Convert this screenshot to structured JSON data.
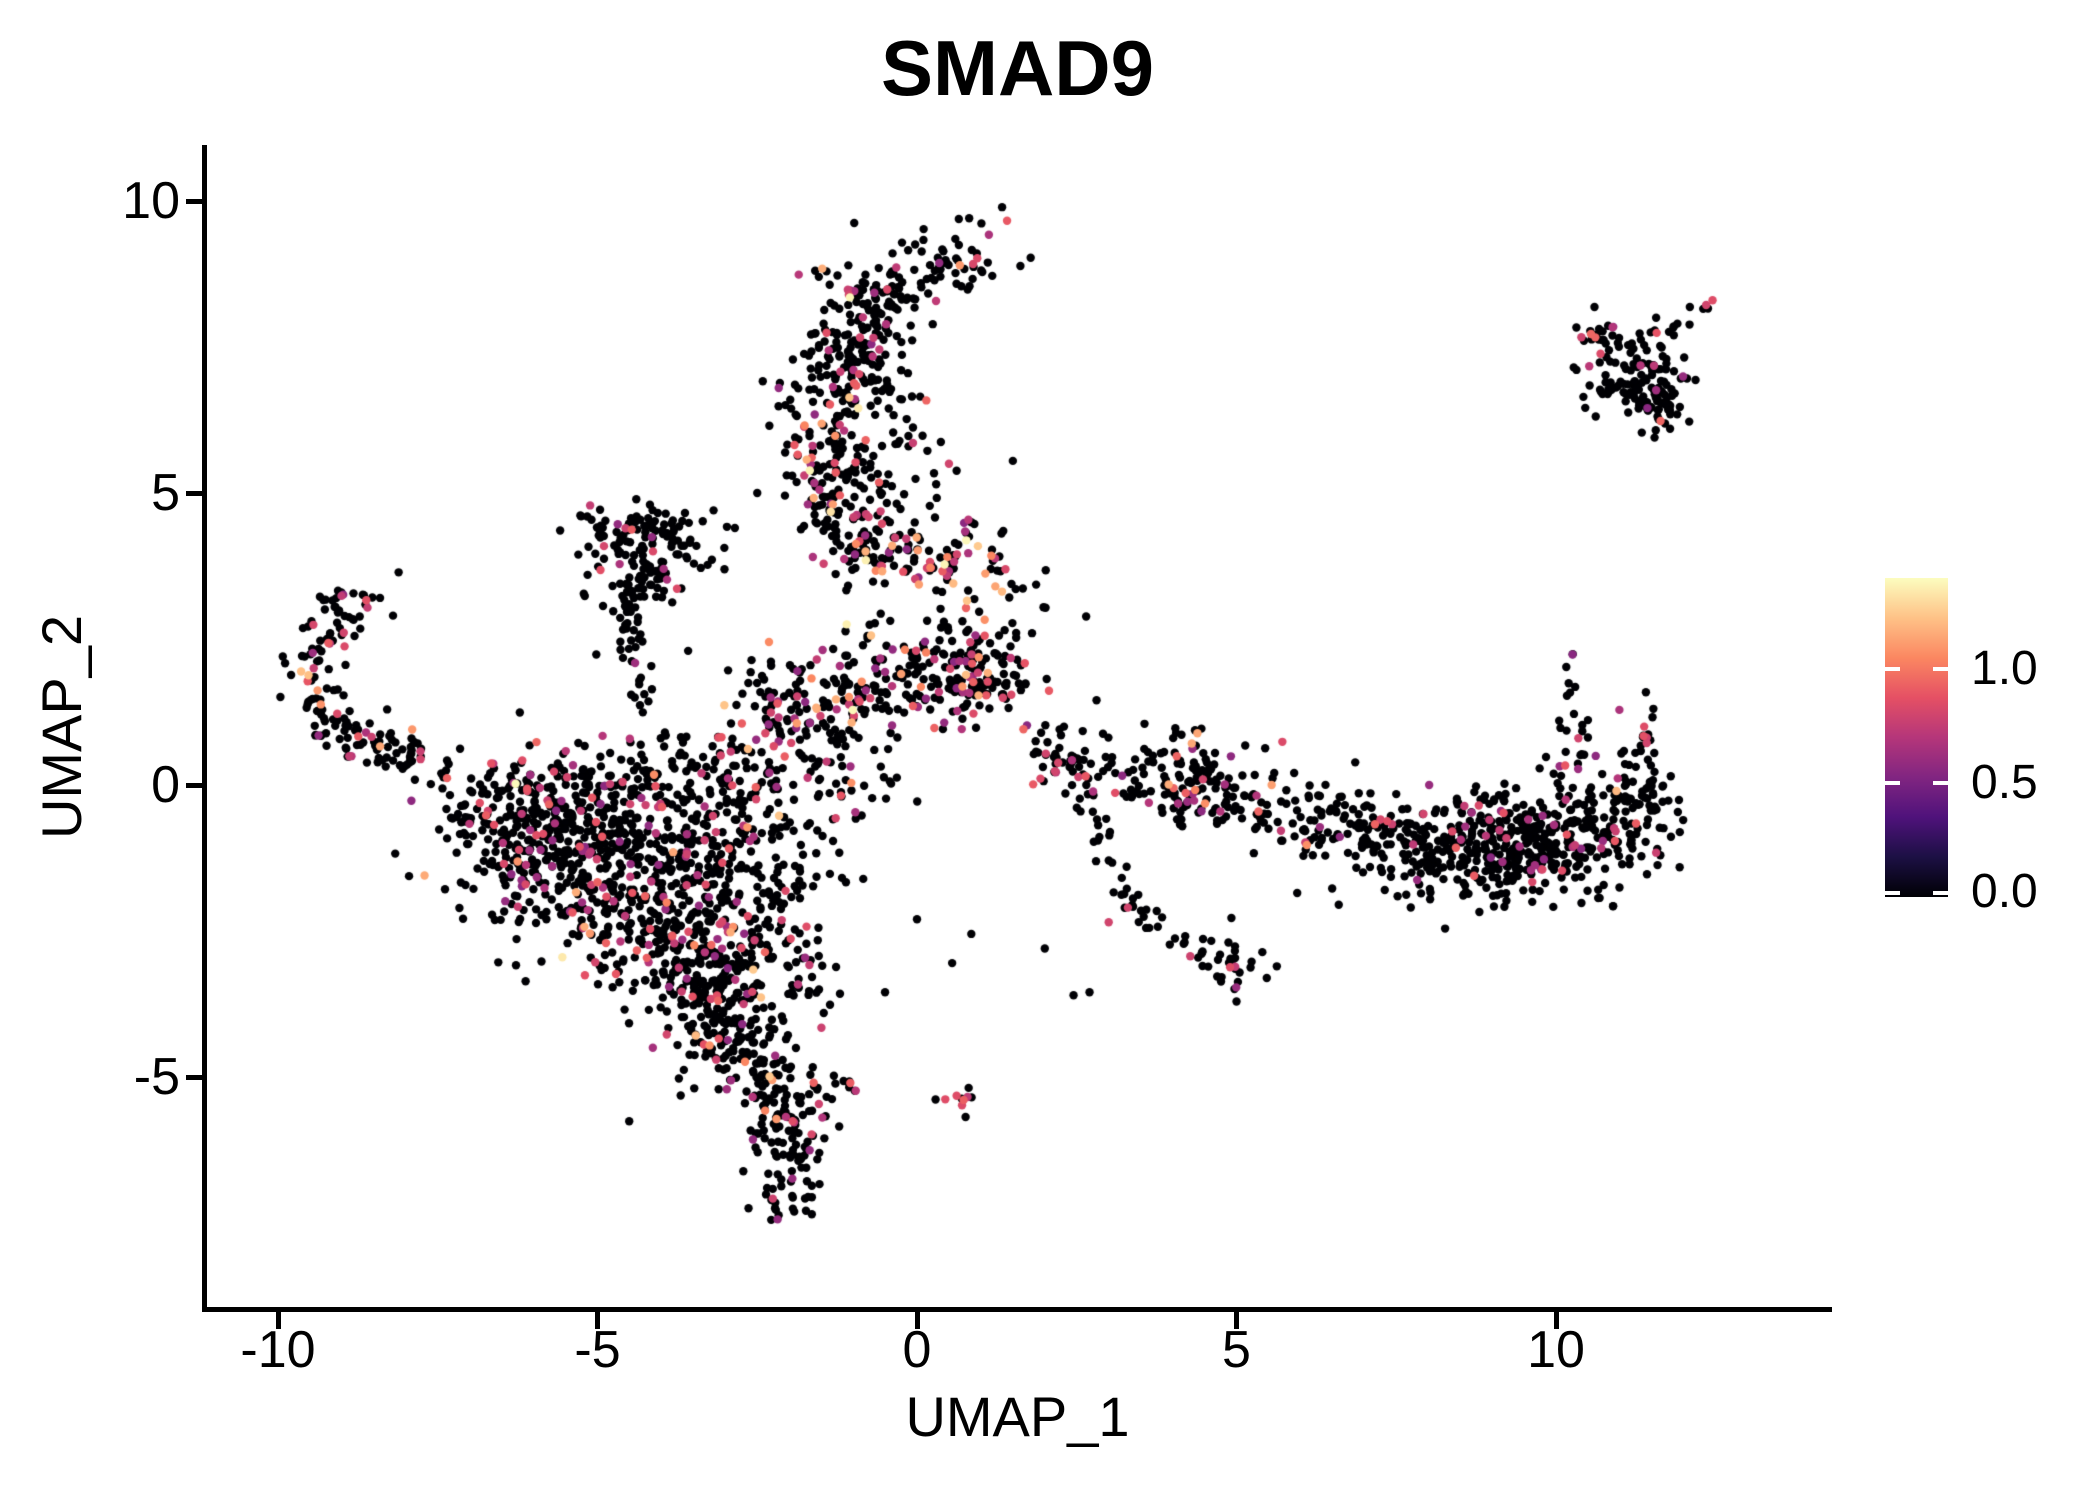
{
  "title": "SMAD9",
  "axes": {
    "x_label": "UMAP_1",
    "y_label": "UMAP_2",
    "x_ticks": [
      {
        "label": "-10",
        "value": -10
      },
      {
        "label": "-5",
        "value": -5
      },
      {
        "label": "0",
        "value": 0
      },
      {
        "label": "5",
        "value": 5
      },
      {
        "label": "10",
        "value": 10
      }
    ],
    "y_ticks": [
      {
        "label": "10",
        "value": 10
      },
      {
        "label": "5",
        "value": 5
      },
      {
        "label": "0",
        "value": 0
      },
      {
        "label": "-5",
        "value": -5
      }
    ]
  },
  "legend": {
    "ticks": [
      {
        "label": "1.0",
        "value": 1.0
      },
      {
        "label": "0.5",
        "value": 0.5
      },
      {
        "label": "0.0",
        "value": 0.0
      }
    ]
  },
  "colors": {
    "background": "#ffffff",
    "axis": "#000000",
    "text": "#000000",
    "colorbar_tick": "#ffffff",
    "point_low": "#000004",
    "point_mid": "#b5367a",
    "point_high": "#fb8761",
    "point_max": "#fcfdbf"
  },
  "chart_data": {
    "type": "scatter",
    "title": "SMAD9",
    "xlabel": "UMAP_1",
    "ylabel": "UMAP_2",
    "xlim": [
      -11.1,
      14.3
    ],
    "ylim": [
      -9.0,
      11.0
    ],
    "x_ticks": [
      -10,
      -5,
      0,
      5,
      10
    ],
    "y_ticks": [
      -5,
      0,
      5,
      10
    ],
    "grid": false,
    "legend_position": "right",
    "color_scale": {
      "type": "magma",
      "vmin": 0.0,
      "vmax": 1.4,
      "legend_tick_values": [
        1.0,
        0.5,
        0.0
      ],
      "stops": [
        "#000004",
        "#1c1044",
        "#4f127b",
        "#812581",
        "#b5367a",
        "#e55064",
        "#fb8761",
        "#fec287",
        "#fcfdbf"
      ]
    },
    "point_radius_px": 4.2,
    "seed": 7,
    "clusters": [
      {
        "kind": "gauss",
        "cx": 0.62,
        "cy": 9.05,
        "sx": 0.42,
        "sy": 0.33,
        "n": 42,
        "p": [
          0.12,
          0.04,
          0
        ]
      },
      {
        "kind": "path",
        "pts": [
          [
            -0.1,
            8.55
          ],
          [
            0.35,
            8.85
          ]
        ],
        "w": 0.12,
        "n": 8,
        "p": [
          0.1,
          0,
          0
        ]
      },
      {
        "kind": "gauss",
        "cx": -0.55,
        "cy": 8.25,
        "sx": 0.5,
        "sy": 0.42,
        "n": 95,
        "p": [
          0.15,
          0.01,
          0
        ]
      },
      {
        "kind": "path",
        "pts": [
          [
            -0.75,
            8.1
          ],
          [
            -1.3,
            6.5
          ]
        ],
        "w": 0.4,
        "n": 120,
        "p": [
          0.14,
          0.015,
          0.003
        ]
      },
      {
        "kind": "path",
        "pts": [
          [
            -1.3,
            6.5
          ],
          [
            -1.1,
            4.7
          ]
        ],
        "w": 0.48,
        "n": 160,
        "p": [
          0.14,
          0.02,
          0.004
        ]
      },
      {
        "kind": "path",
        "pts": [
          [
            -1.1,
            4.7
          ],
          [
            -0.6,
            3.85
          ]
        ],
        "w": 0.42,
        "n": 90,
        "p": [
          0.16,
          0.03,
          0.004
        ]
      },
      {
        "kind": "path",
        "pts": [
          [
            -0.25,
            6.9
          ],
          [
            0.1,
            5.4
          ]
        ],
        "w": 0.22,
        "n": 18,
        "p": [
          0.1,
          0,
          0
        ]
      },
      {
        "kind": "gauss",
        "cx": 0.55,
        "cy": 3.8,
        "sx": 0.5,
        "sy": 0.38,
        "n": 80,
        "p": [
          0.28,
          0.17,
          0.02
        ]
      },
      {
        "kind": "gauss",
        "cx": 1.6,
        "cy": 3.1,
        "sx": 0.3,
        "sy": 0.45,
        "n": 16,
        "p": [
          0.12,
          0,
          0
        ]
      },
      {
        "kind": "path",
        "pts": [
          [
            -2.45,
            1.45
          ],
          [
            -0.6,
            1.8
          ],
          [
            1.25,
            2.15
          ]
        ],
        "w": 0.42,
        "n": 260,
        "p": [
          0.17,
          0.045,
          0.004
        ]
      },
      {
        "kind": "gauss",
        "cx": 0.95,
        "cy": 1.8,
        "sx": 0.38,
        "sy": 0.32,
        "n": 70,
        "p": [
          0.28,
          0.06,
          0
        ]
      },
      {
        "kind": "path",
        "pts": [
          [
            -1.95,
            1.15
          ],
          [
            -1.0,
            -0.4
          ]
        ],
        "w": 0.5,
        "n": 90,
        "p": [
          0.15,
          0.02,
          0
        ]
      },
      {
        "kind": "path",
        "pts": [
          [
            -4.95,
            4.3
          ],
          [
            -3.45,
            4.05
          ]
        ],
        "w": 0.3,
        "n": 95,
        "p": [
          0.1,
          0.01,
          0
        ]
      },
      {
        "kind": "gauss",
        "cx": -4.3,
        "cy": 3.45,
        "sx": 0.42,
        "sy": 0.38,
        "n": 80,
        "p": [
          0.09,
          0.005,
          0
        ]
      },
      {
        "kind": "path",
        "pts": [
          [
            -4.5,
            2.85
          ],
          [
            -4.25,
            1.05
          ]
        ],
        "w": 0.13,
        "n": 28,
        "p": [
          0.08,
          0,
          0
        ]
      },
      {
        "kind": "path",
        "pts": [
          [
            -8.35,
            3.25
          ],
          [
            -8.9,
            3.1
          ],
          [
            -9.3,
            2.55
          ],
          [
            -9.45,
            1.75
          ],
          [
            -9.3,
            1.05
          ],
          [
            -8.75,
            0.75
          ],
          [
            -8.0,
            0.55
          ],
          [
            -7.2,
            0.3
          ]
        ],
        "w": 0.22,
        "n": 170,
        "p": [
          0.12,
          0.02,
          0
        ]
      },
      {
        "kind": "gauss",
        "cx": -5.7,
        "cy": -0.7,
        "sx": 0.85,
        "sy": 0.5,
        "n": 190,
        "p": [
          0.12,
          0.012,
          0
        ]
      },
      {
        "kind": "gauss",
        "cx": -4.6,
        "cy": -1.3,
        "sx": 1.0,
        "sy": 0.75,
        "n": 300,
        "p": [
          0.13,
          0.015,
          0.001
        ]
      },
      {
        "kind": "gauss",
        "cx": -3.8,
        "cy": -2.3,
        "sx": 0.8,
        "sy": 0.75,
        "n": 270,
        "p": [
          0.13,
          0.015,
          0.001
        ]
      },
      {
        "kind": "gauss",
        "cx": -3.25,
        "cy": -3.4,
        "sx": 0.55,
        "sy": 0.55,
        "n": 150,
        "p": [
          0.12,
          0.01,
          0
        ]
      },
      {
        "kind": "gauss",
        "cx": -2.95,
        "cy": -4.35,
        "sx": 0.4,
        "sy": 0.4,
        "n": 75,
        "p": [
          0.1,
          0.01,
          0
        ]
      },
      {
        "kind": "path",
        "pts": [
          [
            -6.9,
            -0.15
          ],
          [
            -2.1,
            0.2
          ]
        ],
        "w": 0.38,
        "n": 200,
        "p": [
          0.14,
          0.025,
          0.002
        ]
      },
      {
        "kind": "gauss",
        "cx": -2.35,
        "cy": -1.1,
        "sx": 0.5,
        "sy": 0.75,
        "n": 90,
        "p": [
          0.13,
          0.02,
          0
        ]
      },
      {
        "kind": "path",
        "pts": [
          [
            -7.0,
            -0.3
          ],
          [
            -5.6,
            -2.3
          ]
        ],
        "w": 0.4,
        "n": 70,
        "p": [
          0.11,
          0.01,
          0
        ]
      },
      {
        "kind": "path",
        "pts": [
          [
            -2.3,
            -2.2
          ],
          [
            -1.6,
            -3.6
          ]
        ],
        "w": 0.35,
        "n": 45,
        "p": [
          0.1,
          0.01,
          0
        ]
      },
      {
        "kind": "path",
        "pts": [
          [
            -2.6,
            -4.55
          ],
          [
            -1.95,
            -5.55
          ],
          [
            -2.0,
            -6.6
          ]
        ],
        "w": 0.33,
        "n": 150,
        "p": [
          0.09,
          0.012,
          0
        ]
      },
      {
        "kind": "gauss",
        "cx": -1.98,
        "cy": -7.0,
        "sx": 0.27,
        "sy": 0.27,
        "n": 30,
        "p": [
          0.06,
          0,
          0
        ]
      },
      {
        "kind": "gauss",
        "cx": -1.05,
        "cy": -5.05,
        "sx": 0.16,
        "sy": 0.12,
        "n": 9,
        "p": [
          0.1,
          0,
          0
        ]
      },
      {
        "kind": "gauss",
        "cx": 0.72,
        "cy": -5.3,
        "sx": 0.17,
        "sy": 0.1,
        "n": 9,
        "p": [
          0.25,
          0,
          0
        ]
      },
      {
        "kind": "path",
        "pts": [
          [
            2.35,
            0.3
          ],
          [
            2.8,
            -0.75
          ],
          [
            3.1,
            -1.6
          ],
          [
            3.55,
            -2.3
          ],
          [
            4.2,
            -2.75
          ],
          [
            4.85,
            -3.05
          ]
        ],
        "w": 0.13,
        "n": 55,
        "p": [
          0.07,
          0,
          0
        ]
      },
      {
        "kind": "gauss",
        "cx": 4.95,
        "cy": -3.1,
        "sx": 0.22,
        "sy": 0.25,
        "n": 26,
        "p": [
          0.1,
          0,
          0
        ]
      },
      {
        "kind": "path",
        "pts": [
          [
            1.85,
            0.55
          ],
          [
            3.1,
            0.2
          ]
        ],
        "w": 0.22,
        "n": 55,
        "p": [
          0.12,
          0.01,
          0
        ]
      },
      {
        "kind": "gauss",
        "cx": 4.3,
        "cy": 0.25,
        "sx": 0.6,
        "sy": 0.38,
        "n": 80,
        "p": [
          0.12,
          0.012,
          0
        ]
      },
      {
        "kind": "path",
        "pts": [
          [
            3.2,
            0.1
          ],
          [
            4.8,
            -0.4
          ],
          [
            6.3,
            -0.6
          ]
        ],
        "w": 0.28,
        "n": 110,
        "p": [
          0.09,
          0.008,
          0
        ]
      },
      {
        "kind": "path",
        "pts": [
          [
            6.3,
            -0.6
          ],
          [
            7.6,
            -0.95
          ]
        ],
        "w": 0.3,
        "n": 80,
        "p": [
          0.08,
          0.008,
          0
        ]
      },
      {
        "kind": "gauss",
        "cx": 8.45,
        "cy": -1.05,
        "sx": 0.75,
        "sy": 0.45,
        "n": 230,
        "p": [
          0.08,
          0.006,
          0
        ]
      },
      {
        "kind": "gauss",
        "cx": 9.95,
        "cy": -0.9,
        "sx": 0.8,
        "sy": 0.5,
        "n": 260,
        "p": [
          0.085,
          0.006,
          0
        ]
      },
      {
        "kind": "path",
        "pts": [
          [
            11.05,
            -1.15
          ],
          [
            11.4,
            0.35
          ]
        ],
        "w": 0.3,
        "n": 85,
        "p": [
          0.09,
          0.01,
          0
        ]
      },
      {
        "kind": "path",
        "pts": [
          [
            10.35,
            0.75
          ],
          [
            10.2,
            2.35
          ]
        ],
        "w": 0.1,
        "n": 13,
        "p": [
          0.1,
          0,
          0
        ]
      },
      {
        "kind": "path",
        "pts": [
          [
            11.3,
            0.55
          ],
          [
            11.55,
            1.35
          ]
        ],
        "w": 0.09,
        "n": 9,
        "p": [
          0.12,
          0,
          0
        ]
      },
      {
        "kind": "gauss",
        "cx": 10.25,
        "cy": 0.55,
        "sx": 0.18,
        "sy": 0.3,
        "n": 12,
        "p": [
          0.1,
          0,
          0
        ]
      },
      {
        "kind": "gauss",
        "cx": 10.6,
        "cy": 7.72,
        "sx": 0.22,
        "sy": 0.16,
        "n": 16,
        "p": [
          0.18,
          0,
          0
        ]
      },
      {
        "kind": "gauss",
        "cx": 11.3,
        "cy": 7.05,
        "sx": 0.42,
        "sy": 0.42,
        "n": 105,
        "p": [
          0.09,
          0,
          0
        ]
      },
      {
        "kind": "gauss",
        "cx": 11.5,
        "cy": 6.55,
        "sx": 0.22,
        "sy": 0.32,
        "n": 45,
        "p": [
          0.04,
          0,
          0
        ]
      },
      {
        "kind": "path",
        "pts": [
          [
            11.75,
            7.75
          ],
          [
            12.35,
            8.28
          ]
        ],
        "w": 0.09,
        "n": 8,
        "p": [
          0.12,
          0,
          0
        ]
      }
    ],
    "singles": [
      [
        -1.05,
        8.35,
        1.38
      ],
      [
        0.67,
        8.9,
        1.1
      ],
      [
        -1.1,
        2.75,
        1.36
      ],
      [
        -5.55,
        -2.95,
        1.34
      ],
      [
        -0.8,
        3.85,
        1.36
      ],
      [
        -9.38,
        1.62,
        1.1
      ],
      [
        -9.33,
        1.38,
        1.08
      ],
      [
        -7.9,
        0.95,
        1.1
      ],
      [
        5.55,
        0.0,
        1.12
      ],
      [
        -2.2,
        -5.72,
        1.1
      ],
      [
        -8.2,
        2.9,
        0
      ],
      [
        0.05,
        6.65,
        0
      ],
      [
        0.5,
        5.5,
        0.8
      ],
      [
        0.62,
        5.38,
        0
      ],
      [
        0.3,
        5.15,
        0
      ],
      [
        0.2,
        4.78,
        0
      ],
      [
        0.85,
        4.5,
        0
      ],
      [
        1.5,
        5.55,
        0
      ],
      [
        1.35,
        4.35,
        0
      ],
      [
        -2.5,
        5.0,
        0
      ],
      [
        -2.85,
        4.4,
        0
      ],
      [
        0.0,
        -2.3,
        0
      ],
      [
        0.85,
        -2.55,
        0
      ],
      [
        2.0,
        -2.8,
        0
      ],
      [
        -0.5,
        -3.55,
        0
      ],
      [
        0.55,
        -3.05,
        0
      ],
      [
        2.45,
        -3.6,
        0
      ],
      [
        2.7,
        -3.55,
        0
      ],
      [
        6.6,
        -2.05,
        0
      ],
      [
        5.95,
        -1.85,
        0
      ],
      [
        2.3,
        1.0,
        0
      ],
      [
        1.8,
        2.6,
        0
      ],
      [
        12.45,
        8.3,
        0.85
      ],
      [
        12.35,
        8.22,
        0.8
      ],
      [
        11.9,
        7.9,
        0
      ],
      [
        10.05,
        1.1,
        0
      ],
      [
        10.35,
        0.8,
        0.8
      ],
      [
        11.38,
        1.0,
        0.85
      ],
      [
        11.42,
        0.72,
        0.8
      ],
      [
        3.3,
        -2.1,
        0.8
      ],
      [
        3.0,
        -2.35,
        0.8
      ],
      [
        4.9,
        -3.12,
        0.85
      ],
      [
        0.62,
        -5.32,
        0.85
      ]
    ]
  }
}
